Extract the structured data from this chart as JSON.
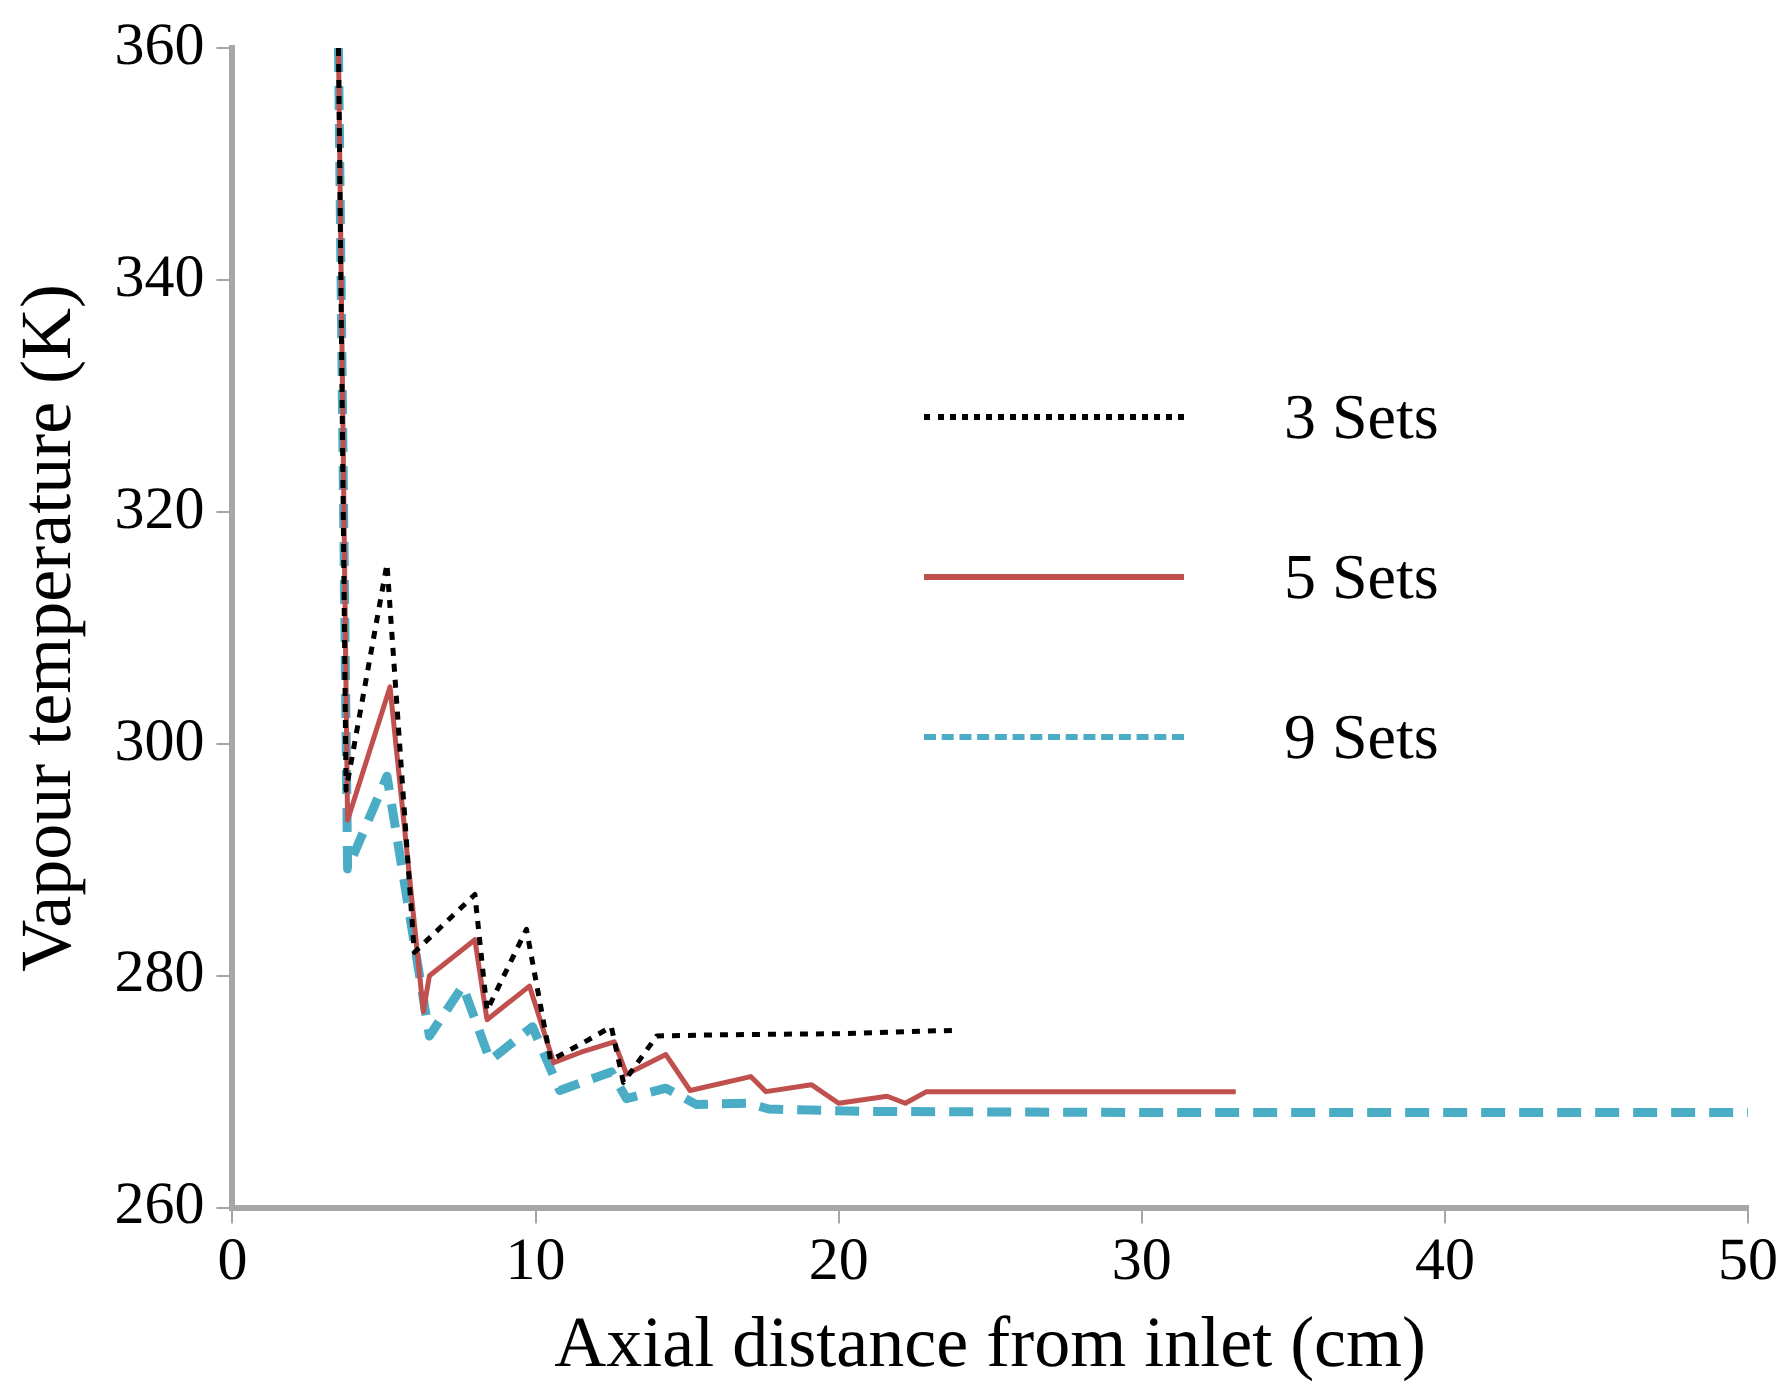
{
  "chart_data": {
    "type": "line",
    "xlabel": "Axial distance from inlet (cm)",
    "ylabel": "Vapour temperature (K)",
    "xlim": [
      0,
      50
    ],
    "xticks": [
      0,
      10,
      20,
      30,
      40,
      50
    ],
    "ylim": [
      260,
      360
    ],
    "yticks": [
      260,
      280,
      300,
      320,
      340,
      360
    ],
    "grid": false,
    "legend": "right",
    "marker": "none",
    "series": [
      {
        "name": "3 Sets",
        "color": "#000000",
        "line_style": "dotted",
        "x": [
          3.5,
          3.75,
          5.1,
          6.0,
          8.0,
          8.4,
          9.7,
          10.5,
          11.7,
          12.5,
          12.9,
          14.0,
          16,
          20,
          24
        ],
        "values": [
          360,
          296,
          315.5,
          282,
          287,
          277,
          284,
          272.7,
          274.4,
          275.6,
          270.8,
          274.8,
          274.9,
          275,
          275.3
        ]
      },
      {
        "name": "5 Sets",
        "color": "#c0504d",
        "line_style": "solid",
        "x": [
          3.5,
          3.8,
          5.2,
          6.3,
          6.5,
          8.0,
          8.4,
          9.8,
          10.6,
          11.5,
          12.6,
          13.0,
          14.3,
          15.1,
          17.1,
          17.6,
          19.1,
          20.0,
          21.6,
          22.2,
          22.9,
          28,
          33.1
        ],
        "values": [
          360,
          293.4,
          304.9,
          276.9,
          280,
          283.1,
          276.2,
          279.1,
          272.5,
          273.4,
          274.3,
          271.5,
          273.2,
          270.1,
          271.3,
          270,
          270.6,
          269,
          269.6,
          269,
          270,
          270,
          270
        ]
      },
      {
        "name": "9 Sets",
        "color": "#4bacc6",
        "line_style": "dashed",
        "x": [
          3.5,
          3.8,
          5.1,
          6.5,
          7.6,
          8.5,
          9.9,
          10.8,
          12.5,
          13.0,
          14.3,
          15.3,
          17.0,
          17.7,
          20.7,
          30,
          40,
          50
        ],
        "values": [
          360,
          289.2,
          297.2,
          274.8,
          279.1,
          272.7,
          275.6,
          270.1,
          271.7,
          269.4,
          270.3,
          268.9,
          269,
          268.5,
          268.3,
          268.2,
          268.2,
          268.2
        ]
      }
    ]
  }
}
